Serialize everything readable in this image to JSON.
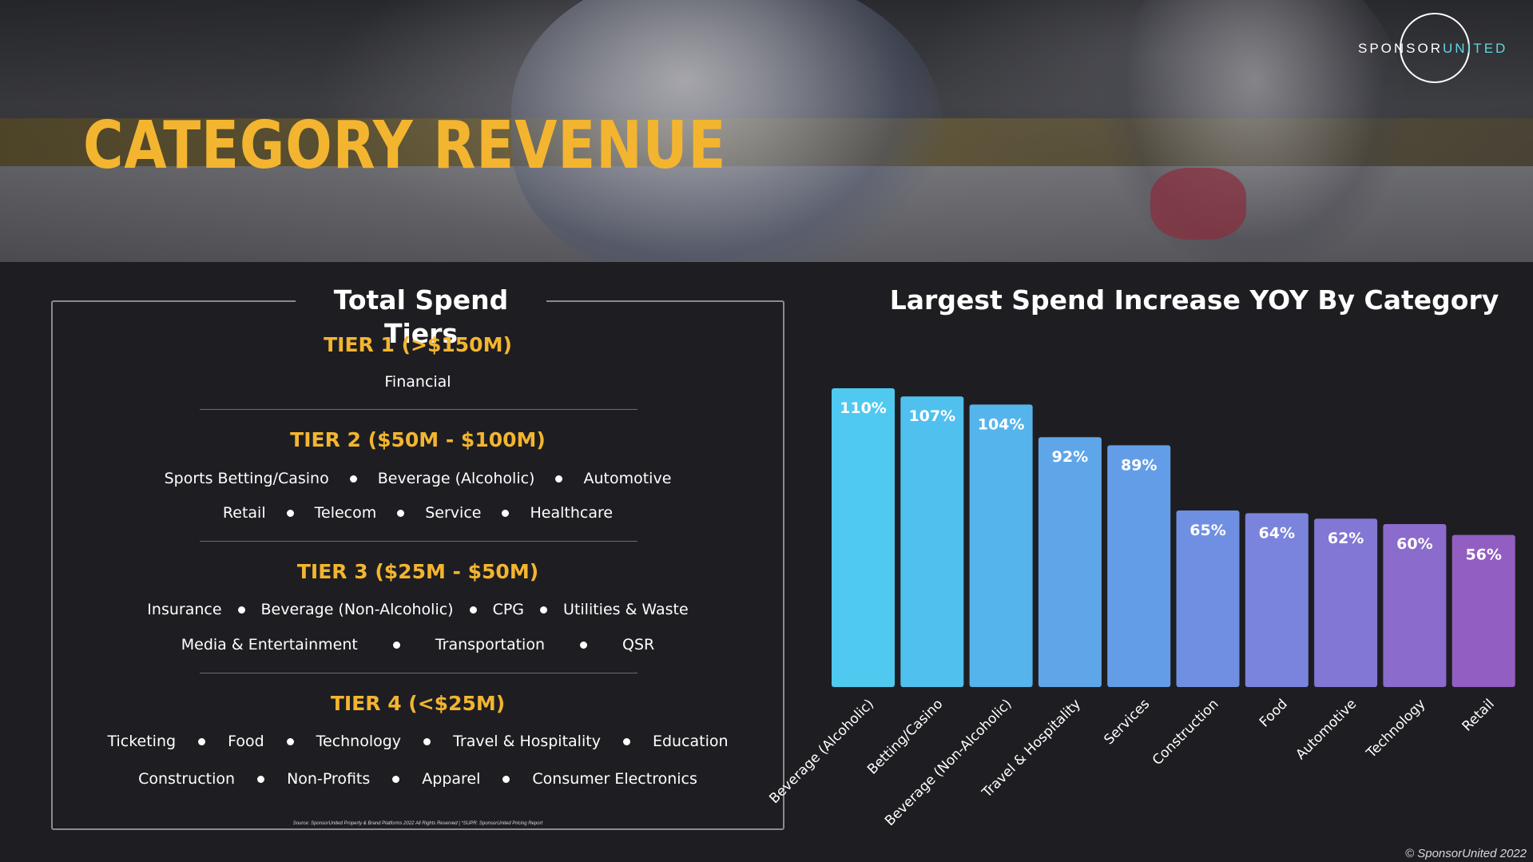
{
  "header": {
    "title": "CATEGORY REVENUE",
    "logo": {
      "word_white": "SPONSOR",
      "word_accent": "UNITED",
      "accent_color": "#5fd6e4"
    }
  },
  "tiers": {
    "title": "Total Spend Tiers",
    "accent_color": "#f3b530",
    "tier1": {
      "heading": "TIER 1 (>$150M)",
      "rows": [
        [
          "Financial"
        ]
      ]
    },
    "tier2": {
      "heading": "TIER 2 ($50M - $100M)",
      "rows": [
        [
          "Sports Betting/Casino",
          "Beverage (Alcoholic)",
          "Automotive"
        ],
        [
          "Retail",
          "Telecom",
          "Service",
          "Healthcare"
        ]
      ]
    },
    "tier3": {
      "heading": "TIER 3 ($25M - $50M)",
      "rows": [
        [
          "Insurance",
          "Beverage (Non-Alcoholic)",
          "CPG",
          "Utilities & Waste"
        ],
        [
          "Media & Entertainment",
          "Transportation",
          "QSR"
        ]
      ]
    },
    "tier4": {
      "heading": "TIER 4 (<$25M)",
      "rows": [
        [
          "Ticketing",
          "Food",
          "Technology",
          "Travel & Hospitality",
          "Education"
        ],
        [
          "Construction",
          "Non-Profits",
          "Apparel",
          "Consumer Electronics"
        ]
      ]
    },
    "source": "Source: SponsorUnited Property & Brand Platforms 2022 All Rights Reserved | *SUPR: SponsorUnited Pricing Report"
  },
  "chart_data": {
    "type": "bar",
    "title": "Largest Spend Increase YOY By Category",
    "categories": [
      "Beverage (Alcoholic)",
      "Betting/Casino",
      "Beverage (Non-Alcoholic)",
      "Travel & Hospitality",
      "Services",
      "Construction",
      "Food",
      "Automotive",
      "Technology",
      "Retail"
    ],
    "values": [
      110,
      107,
      104,
      92,
      89,
      65,
      64,
      62,
      60,
      56
    ],
    "labels": [
      "110%",
      "107%",
      "104%",
      "92%",
      "89%",
      "65%",
      "64%",
      "62%",
      "60%",
      "56%"
    ],
    "unit": "%",
    "xlabel": "",
    "ylabel": "",
    "grid": false,
    "legend": "none",
    "colors": [
      "#4fc9f0",
      "#50c0ee",
      "#56b4ec",
      "#5fa6e9",
      "#649de7",
      "#6f8fe2",
      "#7a84dc",
      "#8277d4",
      "#8b6bcc",
      "#935ec2"
    ]
  },
  "footer": {
    "copyright": "© SponsorUnited 2022"
  }
}
